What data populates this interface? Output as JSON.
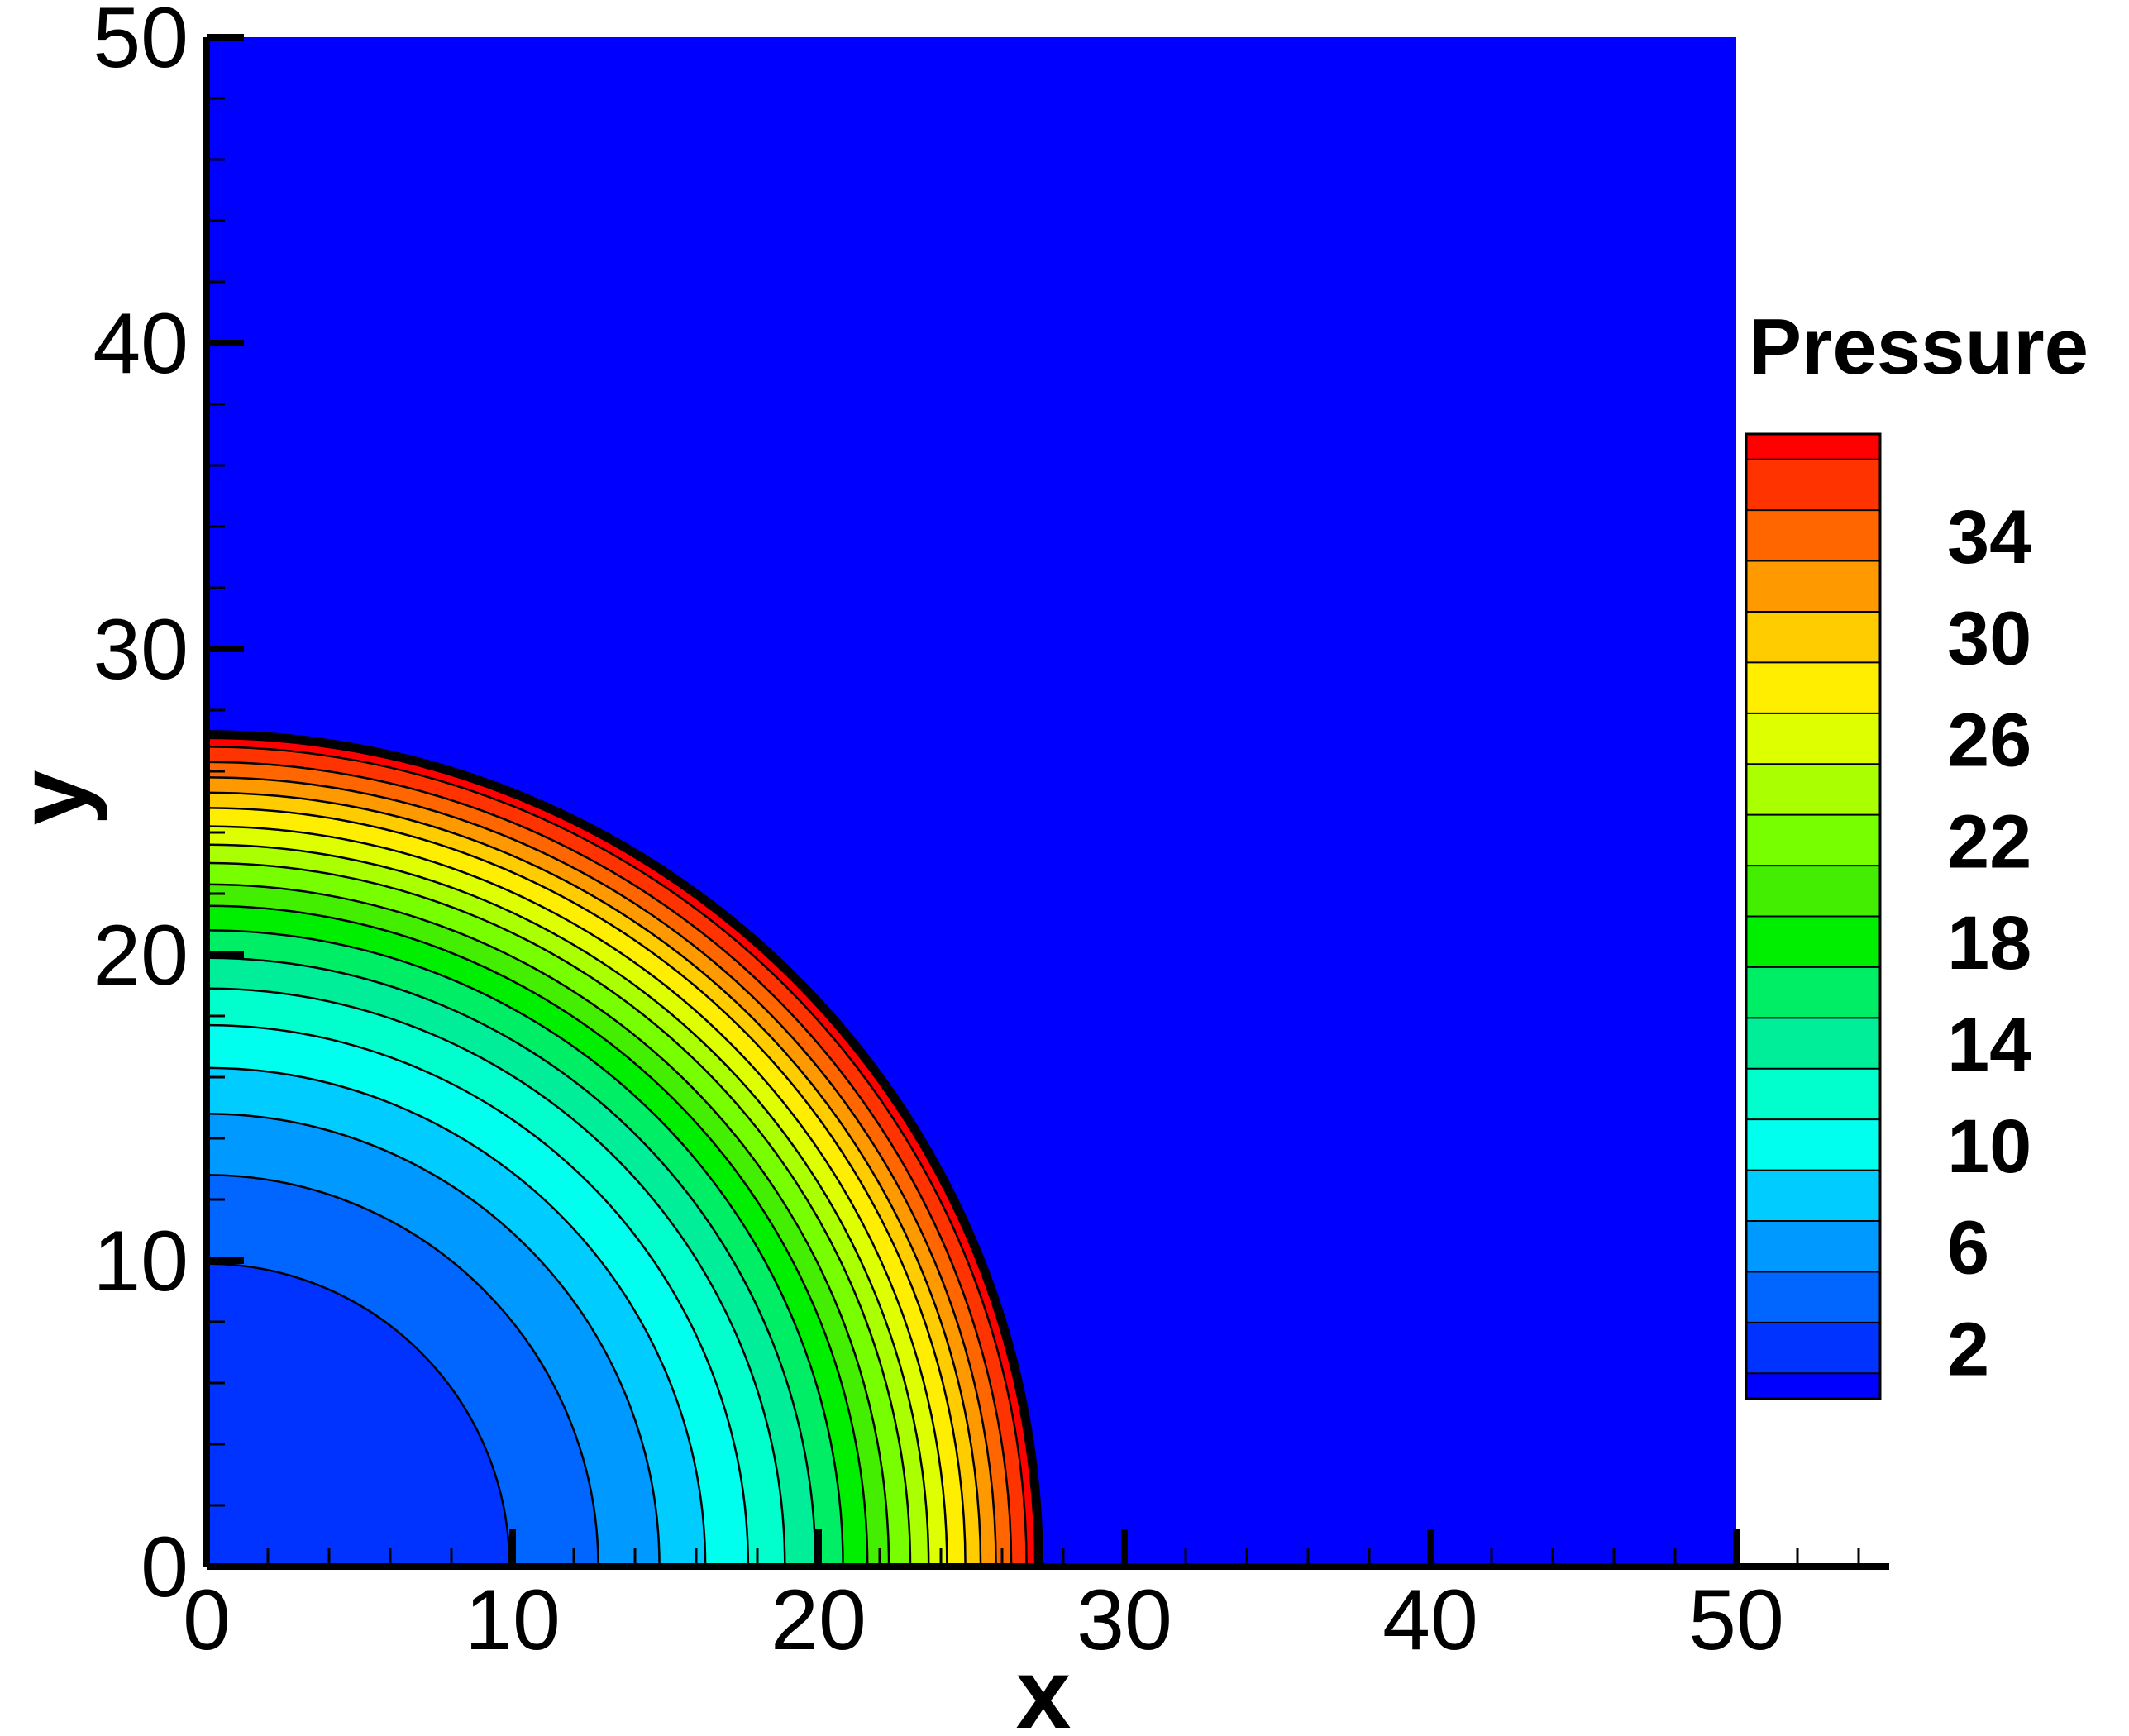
{
  "chart_data": {
    "type": "heatmap",
    "subtype": "contour",
    "xlabel": "x",
    "ylabel": "y",
    "xlim": [
      0,
      55
    ],
    "ylim": [
      0,
      50
    ],
    "domain": {
      "x": [
        0,
        50
      ],
      "y": [
        0,
        50
      ]
    },
    "x_ticks": [
      "0",
      "10",
      "20",
      "30",
      "40",
      "50"
    ],
    "y_ticks": [
      "0",
      "10",
      "20",
      "30",
      "40",
      "50"
    ],
    "x_tick_values": [
      0,
      10,
      20,
      30,
      40,
      50
    ],
    "y_tick_values": [
      0,
      10,
      20,
      30,
      40,
      50
    ],
    "background_color": "#0000ff",
    "legend": {
      "title": "Pressure",
      "placement": "right",
      "labels": [
        "34",
        "30",
        "26",
        "22",
        "18",
        "14",
        "10",
        "6",
        "2"
      ],
      "label_values": [
        34,
        30,
        26,
        22,
        18,
        14,
        10,
        6,
        2
      ],
      "levels": [
        {
          "min": 0,
          "max": 1,
          "color": "#0000ff"
        },
        {
          "min": 1,
          "max": 3,
          "color": "#0033ff"
        },
        {
          "min": 3,
          "max": 5,
          "color": "#0066ff"
        },
        {
          "min": 5,
          "max": 7,
          "color": "#0099ff"
        },
        {
          "min": 7,
          "max": 9,
          "color": "#00ccff"
        },
        {
          "min": 9,
          "max": 11,
          "color": "#00ffee"
        },
        {
          "min": 11,
          "max": 13,
          "color": "#00ffcc"
        },
        {
          "min": 13,
          "max": 15,
          "color": "#00ee99"
        },
        {
          "min": 15,
          "max": 17,
          "color": "#00ee66"
        },
        {
          "min": 17,
          "max": 19,
          "color": "#00ee00"
        },
        {
          "min": 19,
          "max": 21,
          "color": "#44ee00"
        },
        {
          "min": 21,
          "max": 23,
          "color": "#77ff00"
        },
        {
          "min": 23,
          "max": 25,
          "color": "#aaff00"
        },
        {
          "min": 25,
          "max": 27,
          "color": "#ddff00"
        },
        {
          "min": 27,
          "max": 29,
          "color": "#ffee00"
        },
        {
          "min": 29,
          "max": 31,
          "color": "#ffcc00"
        },
        {
          "min": 31,
          "max": 33,
          "color": "#ff9900"
        },
        {
          "min": 33,
          "max": 35,
          "color": "#ff6600"
        },
        {
          "min": 35,
          "max": 37,
          "color": "#ff3300"
        },
        {
          "min": 37,
          "max": 38,
          "color": "#ff0000"
        }
      ]
    },
    "field": {
      "shape": "quarter-circle",
      "center": [
        0,
        0
      ],
      "outer_boundary_radius": 27.2,
      "contour_bands": [
        {
          "r_outer": 27.2,
          "value": 37.5,
          "color": "#ff0000"
        },
        {
          "r_outer": 26.8,
          "value": 36,
          "color": "#ff3300"
        },
        {
          "r_outer": 26.3,
          "value": 34,
          "color": "#ff6600"
        },
        {
          "r_outer": 25.8,
          "value": 32,
          "color": "#ff9900"
        },
        {
          "r_outer": 25.3,
          "value": 30,
          "color": "#ffcc00"
        },
        {
          "r_outer": 24.8,
          "value": 28,
          "color": "#ffee00"
        },
        {
          "r_outer": 24.2,
          "value": 26,
          "color": "#ddff00"
        },
        {
          "r_outer": 23.6,
          "value": 24,
          "color": "#aaff00"
        },
        {
          "r_outer": 23.0,
          "value": 22,
          "color": "#77ff00"
        },
        {
          "r_outer": 22.3,
          "value": 20,
          "color": "#44ee00"
        },
        {
          "r_outer": 21.6,
          "value": 18,
          "color": "#00ee00"
        },
        {
          "r_outer": 20.8,
          "value": 16,
          "color": "#00ee66"
        },
        {
          "r_outer": 19.9,
          "value": 14,
          "color": "#00ee99"
        },
        {
          "r_outer": 18.9,
          "value": 12,
          "color": "#00ffcc"
        },
        {
          "r_outer": 17.7,
          "value": 10,
          "color": "#00ffee"
        },
        {
          "r_outer": 16.3,
          "value": 8,
          "color": "#00ccff"
        },
        {
          "r_outer": 14.8,
          "value": 6,
          "color": "#0099ff"
        },
        {
          "r_outer": 12.8,
          "value": 4,
          "color": "#0066ff"
        },
        {
          "r_outer": 9.9,
          "value": 2,
          "color": "#0033ff"
        }
      ]
    }
  }
}
